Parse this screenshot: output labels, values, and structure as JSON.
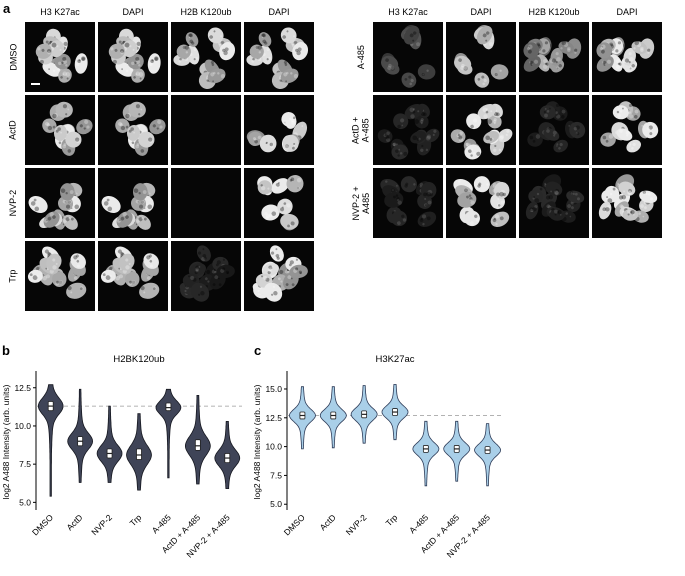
{
  "figure": {
    "panel_a_label": "a",
    "panel_b_label": "b",
    "panel_c_label": "c"
  },
  "panel_a": {
    "grids": [
      {
        "columns": [
          "H3 K27ac",
          "DAPI",
          "H2B K120ub",
          "DAPI"
        ],
        "rows": [
          {
            "label": "DMSO",
            "cells": [
              "bright",
              "bright",
              "bright",
              "bright"
            ],
            "scalebar_col": 0
          },
          {
            "label": "ActD",
            "cells": [
              "bright",
              "bright",
              "dark",
              "bright"
            ]
          },
          {
            "label": "NVP-2",
            "cells": [
              "bright",
              "bright",
              "dark",
              "bright"
            ]
          },
          {
            "label": "Trp",
            "cells": [
              "bright",
              "bright",
              "faint",
              "bright"
            ]
          }
        ]
      },
      {
        "columns": [
          "H3 K27ac",
          "DAPI",
          "H2B K120ub",
          "DAPI"
        ],
        "rows": [
          {
            "label": "A-485",
            "cells": [
              "dim",
              "bright",
              "medium",
              "bright"
            ]
          },
          {
            "label": "ActD +\nA-485",
            "cells": [
              "faint",
              "bright",
              "faint",
              "bright"
            ]
          },
          {
            "label": "NVP-2 +\nA485",
            "cells": [
              "faint",
              "bright",
              "faint",
              "bright"
            ]
          }
        ]
      }
    ]
  },
  "chart_data": [
    {
      "type": "violin",
      "title": "H2BK120ub",
      "ylabel": "log2 A488 Intensity (arb. units)",
      "ylim": [
        4.5,
        13.4
      ],
      "yticks": [
        5.0,
        7.5,
        10.0,
        12.5
      ],
      "dashed_line": 11.3,
      "fill": "#3f4457",
      "stroke": "#15171f",
      "categories": [
        "DMSO",
        "ActD",
        "NVP-2",
        "Trp",
        "A-485",
        "ActD + A-485",
        "NVP-2 + A-485"
      ],
      "violins": [
        {
          "median": 11.3,
          "q1": 11.0,
          "q3": 11.6,
          "min": 5.4,
          "max": 12.7
        },
        {
          "median": 9.0,
          "q1": 8.7,
          "q3": 9.3,
          "min": 6.3,
          "max": 12.4
        },
        {
          "median": 8.2,
          "q1": 7.9,
          "q3": 8.5,
          "min": 6.3,
          "max": 11.3
        },
        {
          "median": 8.1,
          "q1": 7.8,
          "q3": 8.5,
          "min": 5.8,
          "max": 10.8
        },
        {
          "median": 11.2,
          "q1": 11.0,
          "q3": 11.5,
          "min": 6.6,
          "max": 12.4
        },
        {
          "median": 8.7,
          "q1": 8.4,
          "q3": 9.1,
          "min": 6.2,
          "max": 12.0
        },
        {
          "median": 7.9,
          "q1": 7.6,
          "q3": 8.2,
          "min": 5.9,
          "max": 10.3
        }
      ]
    },
    {
      "type": "violin",
      "title": "H3K27ac",
      "ylabel": "log2 A488 Intensity (arb. units)",
      "ylim": [
        4.5,
        16.3
      ],
      "yticks": [
        5.0,
        7.5,
        10.0,
        12.5,
        15.0
      ],
      "dashed_line": 12.7,
      "fill": "#a9cfe8",
      "stroke": "#2e3c58",
      "categories": [
        "DMSO",
        "ActD",
        "NVP-2",
        "Trp",
        "A-485",
        "ActD + A-485",
        "NVP-2 + A-485"
      ],
      "violins": [
        {
          "median": 12.7,
          "q1": 12.4,
          "q3": 13.0,
          "min": 9.8,
          "max": 15.2
        },
        {
          "median": 12.7,
          "q1": 12.4,
          "q3": 13.0,
          "min": 9.9,
          "max": 15.2
        },
        {
          "median": 12.8,
          "q1": 12.5,
          "q3": 13.1,
          "min": 10.3,
          "max": 15.3
        },
        {
          "median": 13.0,
          "q1": 12.7,
          "q3": 13.3,
          "min": 10.6,
          "max": 15.4
        },
        {
          "median": 9.8,
          "q1": 9.5,
          "q3": 10.1,
          "min": 6.6,
          "max": 12.2
        },
        {
          "median": 9.8,
          "q1": 9.5,
          "q3": 10.1,
          "min": 7.0,
          "max": 12.2
        },
        {
          "median": 9.7,
          "q1": 9.4,
          "q3": 10.0,
          "min": 6.6,
          "max": 12.0
        }
      ]
    }
  ]
}
